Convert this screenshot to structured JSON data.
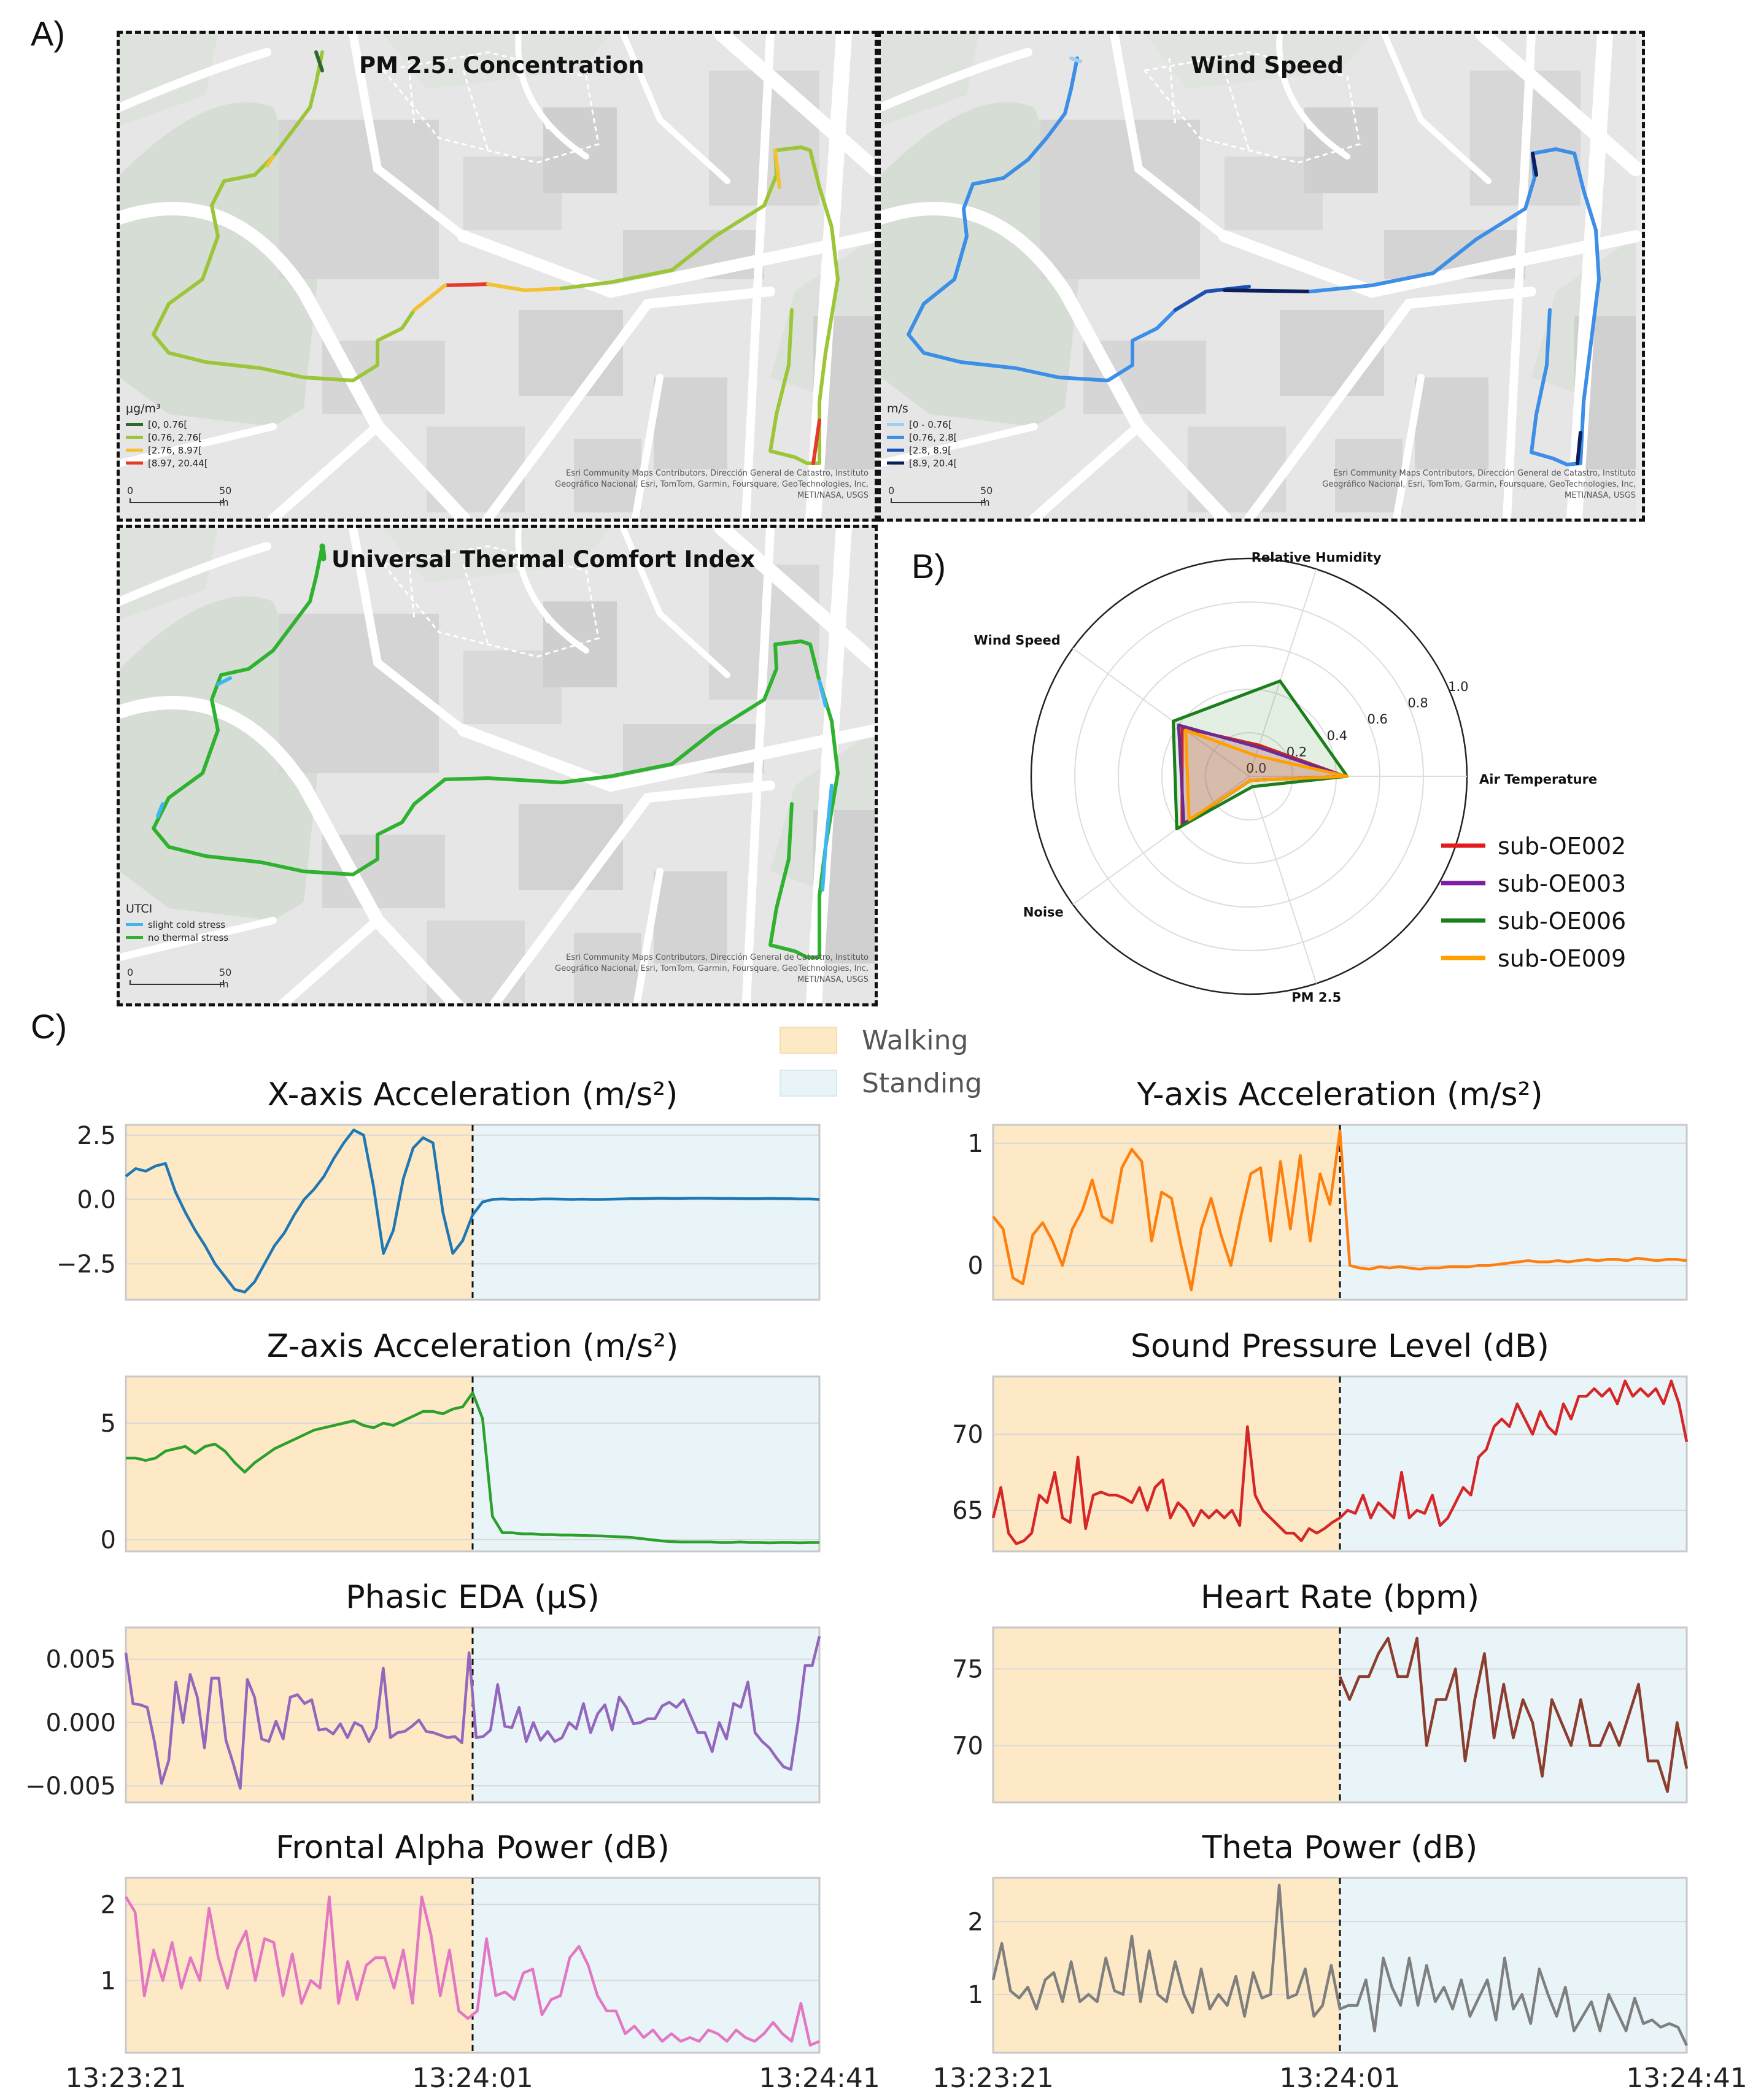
{
  "panel_labels": {
    "a": "A)",
    "b": "B)",
    "c": "C)"
  },
  "maps": {
    "pm25": {
      "title": "PM 2.5. Concentration",
      "legend_title": "μg/m³",
      "legend": [
        {
          "label": "[0, 0.76[",
          "color": "#2e6b2a"
        },
        {
          "label": "[0.76, 2.76[",
          "color": "#9dc53a"
        },
        {
          "label": "[2.76, 8.97[",
          "color": "#f1c232"
        },
        {
          "label": "[8.97, 20.44[",
          "color": "#e53b2a"
        }
      ]
    },
    "wind": {
      "title": "Wind Speed",
      "legend_title": "m/s",
      "legend": [
        {
          "label": "[0 - 0.76[",
          "color": "#9ecff5"
        },
        {
          "label": "[0.76, 2.8[",
          "color": "#3d8ee6"
        },
        {
          "label": "[2.8, 8.9[",
          "color": "#1f4fb2"
        },
        {
          "label": "[8.9, 20.4[",
          "color": "#0b1f5c"
        }
      ]
    },
    "utci": {
      "title": "Universal Thermal Comfort Index",
      "legend_title": "UTCI",
      "legend": [
        {
          "label": "slight cold stress",
          "color": "#3fb6f0"
        },
        {
          "label": "no thermal stress",
          "color": "#2fb22f"
        }
      ]
    },
    "attribution_1": "Esri Community Maps Contributors, Dirección General de Catastro, Instituto",
    "attribution_2": "Geográfico Nacional, Esri, TomTom, Garmin, Foursquare, GeoTechnologies, Inc,",
    "attribution_3": "METI/NASA, USGS",
    "scale_zero": "0",
    "scale_label": "50 m"
  },
  "chart_data": [
    {
      "type": "radar",
      "id": "radar",
      "axes": [
        "Air Temperature",
        "Relative Humidity",
        "Wind Speed",
        "Noise",
        "PM 2.5"
      ],
      "rlim": [
        0,
        1.0
      ],
      "rticks": [
        "0.0",
        "0.2",
        "0.4",
        "0.6",
        "0.8",
        "1.0"
      ],
      "series": [
        {
          "name": "sub-OE002",
          "color": "#e41a1c",
          "values": [
            0.44,
            0.15,
            0.38,
            0.38,
            0.02
          ]
        },
        {
          "name": "sub-OE003",
          "color": "#7b1fa2",
          "values": [
            0.44,
            0.14,
            0.4,
            0.37,
            0.02
          ]
        },
        {
          "name": "sub-OE006",
          "color": "#1b7f1b",
          "values": [
            0.45,
            0.46,
            0.43,
            0.41,
            0.05
          ]
        },
        {
          "name": "sub-OE009",
          "color": "#ff9f00",
          "values": [
            0.45,
            0.1,
            0.36,
            0.34,
            0.02
          ]
        }
      ]
    },
    {
      "type": "line",
      "id": "xacc",
      "title": "X-axis Acceleration (m/s²)",
      "color": "#1f77b4",
      "x_range": [
        "13:23:21",
        "13:24:41"
      ],
      "ylim": [
        -3.9,
        2.9
      ],
      "yticks": [
        2.5,
        0.0,
        -2.5
      ],
      "ytick_labels": [
        "2.5",
        "0.0",
        "−2.5"
      ],
      "values": [
        0.9,
        1.2,
        1.1,
        1.3,
        1.4,
        0.3,
        -0.5,
        -1.2,
        -1.8,
        -2.5,
        -3.0,
        -3.5,
        -3.6,
        -3.2,
        -2.5,
        -1.8,
        -1.3,
        -0.6,
        0.0,
        0.4,
        0.9,
        1.6,
        2.2,
        2.7,
        2.5,
        0.5,
        -2.1,
        -1.2,
        0.8,
        2.0,
        2.4,
        2.2,
        -0.5,
        -2.1,
        -1.6,
        -0.6,
        -0.1,
        0.0,
        0.02,
        0.0,
        0.01,
        0.0,
        0.02,
        0.02,
        0.01,
        0.0,
        0.01,
        0.0,
        0.0,
        0.01,
        0.02,
        0.03,
        0.03,
        0.04,
        0.05,
        0.04,
        0.04,
        0.05,
        0.05,
        0.05,
        0.04,
        0.04,
        0.03,
        0.03,
        0.03,
        0.04,
        0.03,
        0.03,
        0.02,
        0.02,
        0.0
      ]
    },
    {
      "type": "line",
      "id": "yacc",
      "title": "Y-axis Acceleration (m/s²)",
      "color": "#ff7f0e",
      "x_range": [
        "13:23:21",
        "13:24:41"
      ],
      "ylim": [
        -0.28,
        1.15
      ],
      "yticks": [
        1,
        0
      ],
      "ytick_labels": [
        "1",
        "0"
      ],
      "values": [
        0.4,
        0.3,
        -0.1,
        -0.15,
        0.25,
        0.35,
        0.2,
        0.0,
        0.3,
        0.45,
        0.7,
        0.4,
        0.35,
        0.8,
        0.95,
        0.85,
        0.2,
        0.6,
        0.55,
        0.15,
        -0.2,
        0.3,
        0.55,
        0.25,
        0.0,
        0.4,
        0.75,
        0.8,
        0.2,
        0.85,
        0.3,
        0.9,
        0.2,
        0.75,
        0.5,
        1.1,
        0.0,
        -0.02,
        -0.03,
        -0.01,
        -0.02,
        -0.01,
        -0.02,
        -0.03,
        -0.02,
        -0.02,
        -0.01,
        -0.01,
        -0.01,
        0.0,
        0.0,
        0.01,
        0.02,
        0.03,
        0.04,
        0.03,
        0.03,
        0.04,
        0.03,
        0.04,
        0.05,
        0.04,
        0.05,
        0.05,
        0.04,
        0.06,
        0.05,
        0.04,
        0.05,
        0.05,
        0.04
      ]
    },
    {
      "type": "line",
      "id": "zacc",
      "title": "Z-axis Acceleration (m/s²)",
      "color": "#2ca02c",
      "x_range": [
        "13:23:21",
        "13:24:41"
      ],
      "ylim": [
        -0.5,
        7.0
      ],
      "yticks": [
        5,
        0
      ],
      "ytick_labels": [
        "5",
        "0"
      ],
      "values": [
        3.5,
        3.5,
        3.4,
        3.5,
        3.8,
        3.9,
        4.0,
        3.7,
        4.0,
        4.1,
        3.8,
        3.3,
        2.9,
        3.3,
        3.6,
        3.9,
        4.1,
        4.3,
        4.5,
        4.7,
        4.8,
        4.9,
        5.0,
        5.1,
        4.9,
        4.8,
        5.0,
        4.9,
        5.1,
        5.3,
        5.5,
        5.5,
        5.4,
        5.6,
        5.7,
        6.3,
        5.2,
        1.0,
        0.3,
        0.3,
        0.25,
        0.25,
        0.22,
        0.22,
        0.2,
        0.2,
        0.18,
        0.17,
        0.16,
        0.14,
        0.12,
        0.1,
        0.05,
        0.0,
        -0.05,
        -0.08,
        -0.1,
        -0.1,
        -0.1,
        -0.1,
        -0.12,
        -0.12,
        -0.1,
        -0.12,
        -0.12,
        -0.13,
        -0.12,
        -0.12,
        -0.13,
        -0.12,
        -0.12
      ]
    },
    {
      "type": "line",
      "id": "spl",
      "title": "Sound Pressure Level (dB)",
      "color": "#d62728",
      "x_range": [
        "13:23:21",
        "13:24:41"
      ],
      "ylim": [
        62.3,
        73.8
      ],
      "yticks": [
        70,
        65
      ],
      "ytick_labels": [
        "70",
        "65"
      ],
      "values": [
        64.5,
        66.5,
        63.5,
        62.8,
        63.0,
        63.5,
        66.0,
        65.5,
        67.5,
        64.5,
        64.2,
        68.5,
        63.8,
        66.0,
        66.2,
        66.0,
        66.0,
        65.8,
        65.5,
        66.5,
        65.0,
        66.5,
        67.0,
        64.5,
        65.5,
        65.0,
        64.0,
        65.0,
        64.5,
        65.0,
        64.5,
        65.0,
        64.0,
        70.5,
        66.0,
        65.0,
        64.5,
        64.0,
        63.5,
        63.5,
        63.0,
        63.8,
        63.5,
        63.8,
        64.2,
        64.5,
        65.0,
        64.8,
        66.0,
        64.5,
        65.5,
        65.0,
        64.5,
        67.5,
        64.5,
        65.0,
        64.8,
        66.0,
        64.0,
        64.5,
        65.5,
        66.5,
        66.0,
        68.5,
        69.0,
        70.5,
        71.0,
        70.5,
        72.0,
        71.0,
        70.0,
        71.5,
        70.5,
        70.0,
        72.0,
        71.0,
        72.5,
        72.5,
        73.0,
        72.5,
        73.0,
        72.0,
        73.5,
        72.5,
        73.0,
        72.5,
        73.0,
        72.0,
        73.5,
        72.0,
        69.5
      ]
    },
    {
      "type": "line",
      "id": "eda",
      "title": "Phasic EDA (μS)",
      "color": "#9467bd",
      "x_range": [
        "13:23:21",
        "13:24:41"
      ],
      "ylim": [
        -0.0063,
        0.0075
      ],
      "yticks": [
        0.005,
        0.0,
        -0.005
      ],
      "ytick_labels": [
        "0.005",
        "0.000",
        "−0.005"
      ],
      "values": [
        0.0055,
        0.0015,
        0.0014,
        0.0012,
        -0.0015,
        -0.0048,
        -0.003,
        0.0032,
        0.0,
        0.0038,
        0.002,
        -0.002,
        0.0035,
        0.0035,
        -0.0014,
        -0.0032,
        -0.0052,
        0.0034,
        0.002,
        -0.0013,
        -0.0015,
        0.0001,
        -0.0013,
        0.002,
        0.0022,
        0.0015,
        0.0018,
        -0.0006,
        -0.0005,
        -0.0009,
        -0.0001,
        -0.0012,
        0.0,
        -0.0003,
        -0.0015,
        -0.0004,
        0.0043,
        -0.0012,
        -0.0008,
        -0.0007,
        -0.0003,
        0.0002,
        -0.0007,
        -0.0008,
        -0.001,
        -0.0012,
        -0.0011,
        -0.0016,
        0.0055,
        -0.0012,
        -0.0011,
        -0.0006,
        0.003,
        -0.0003,
        -0.0004,
        0.0012,
        -0.0015,
        0.0,
        -0.0014,
        -0.0007,
        -0.0015,
        -0.0012,
        0.0,
        -0.0005,
        0.0015,
        -0.0008,
        0.0007,
        0.0014,
        -0.0006,
        0.002,
        0.0012,
        -0.0001,
        0.0,
        0.0003,
        0.0003,
        0.0013,
        0.0016,
        0.0012,
        0.0018,
        0.0005,
        -0.0008,
        -0.0008,
        -0.0023,
        0.0,
        -0.0013,
        0.0015,
        0.0012,
        0.0032,
        -0.0008,
        -0.0015,
        -0.002,
        -0.0028,
        -0.0035,
        -0.0037,
        0.0,
        0.0045,
        0.0045,
        0.0068
      ]
    },
    {
      "type": "line",
      "id": "hr",
      "title": "Heart Rate (bpm)",
      "color": "#8c3d2e",
      "x_range": [
        "13:23:21",
        "13:24:41"
      ],
      "ylim": [
        66.3,
        77.7
      ],
      "yticks": [
        75,
        70
      ],
      "ytick_labels": [
        "75",
        "70"
      ],
      "values": [
        74.5,
        73.0,
        74.5,
        74.5,
        76.0,
        77.0,
        74.5,
        74.5,
        77.0,
        70.0,
        73.0,
        73.0,
        75.0,
        69.0,
        73.0,
        76.0,
        70.5,
        74.0,
        70.5,
        73.0,
        71.5,
        68.0,
        73.0,
        71.5,
        70.0,
        73.0,
        70.0,
        70.0,
        71.5,
        70.0,
        72.0,
        74.0,
        69.0,
        69.0,
        67.0,
        71.5,
        68.5
      ]
    },
    {
      "type": "line",
      "id": "alpha",
      "title": "Frontal Alpha Power (dB)",
      "color": "#e377c2",
      "x_range": [
        "13:23:21",
        "13:24:41"
      ],
      "ylim": [
        0.05,
        2.35
      ],
      "yticks": [
        2,
        1
      ],
      "ytick_labels": [
        "2",
        "1"
      ],
      "values": [
        2.1,
        1.9,
        0.8,
        1.4,
        1.0,
        1.5,
        0.9,
        1.3,
        1.0,
        1.95,
        1.3,
        0.9,
        1.4,
        1.65,
        1.0,
        1.55,
        1.5,
        0.8,
        1.35,
        0.7,
        1.0,
        0.9,
        2.1,
        0.7,
        1.25,
        0.75,
        1.2,
        1.3,
        1.3,
        0.9,
        1.4,
        0.7,
        2.1,
        1.6,
        0.8,
        1.4,
        0.6,
        0.5,
        0.6,
        1.55,
        0.8,
        0.85,
        0.75,
        1.1,
        1.15,
        0.55,
        0.75,
        0.8,
        1.3,
        1.45,
        1.2,
        0.8,
        0.6,
        0.6,
        0.3,
        0.4,
        0.25,
        0.35,
        0.2,
        0.3,
        0.2,
        0.25,
        0.2,
        0.35,
        0.3,
        0.2,
        0.35,
        0.25,
        0.2,
        0.3,
        0.45,
        0.3,
        0.2,
        0.7,
        0.15,
        0.2
      ]
    },
    {
      "type": "line",
      "id": "theta",
      "title": "Theta Power (dB)",
      "color": "#7f7f7f",
      "x_range": [
        "13:23:21",
        "13:24:41"
      ],
      "ylim": [
        0.2,
        2.6
      ],
      "yticks": [
        2,
        1
      ],
      "ytick_labels": [
        "2",
        "1"
      ],
      "values": [
        1.2,
        1.7,
        1.05,
        0.95,
        1.1,
        0.8,
        1.2,
        1.3,
        0.9,
        1.45,
        0.9,
        1.0,
        0.9,
        1.5,
        1.05,
        1.0,
        1.8,
        0.9,
        1.6,
        1.0,
        0.9,
        1.45,
        1.0,
        0.75,
        1.35,
        0.8,
        1.0,
        0.85,
        1.25,
        0.7,
        1.3,
        0.95,
        1.0,
        2.5,
        0.95,
        1.0,
        1.35,
        0.7,
        0.85,
        1.4,
        0.8,
        0.85,
        0.85,
        1.2,
        0.5,
        1.5,
        1.1,
        0.85,
        1.5,
        0.85,
        1.4,
        0.9,
        1.1,
        0.8,
        1.2,
        0.7,
        0.95,
        1.2,
        0.65,
        1.5,
        0.8,
        1.0,
        0.6,
        1.35,
        1.0,
        0.7,
        1.1,
        0.5,
        0.7,
        0.9,
        0.5,
        1.0,
        0.75,
        0.5,
        0.95,
        0.6,
        0.65,
        0.55,
        0.6,
        0.55,
        0.3
      ]
    }
  ],
  "activity_legend": {
    "walking": {
      "label": "Walking",
      "color": "#fde9c5"
    },
    "standing": {
      "label": "Standing",
      "color": "#e8f4f8"
    }
  },
  "x_tick_labels": [
    "13:23:21",
    "13:24:01",
    "13:24:41"
  ]
}
